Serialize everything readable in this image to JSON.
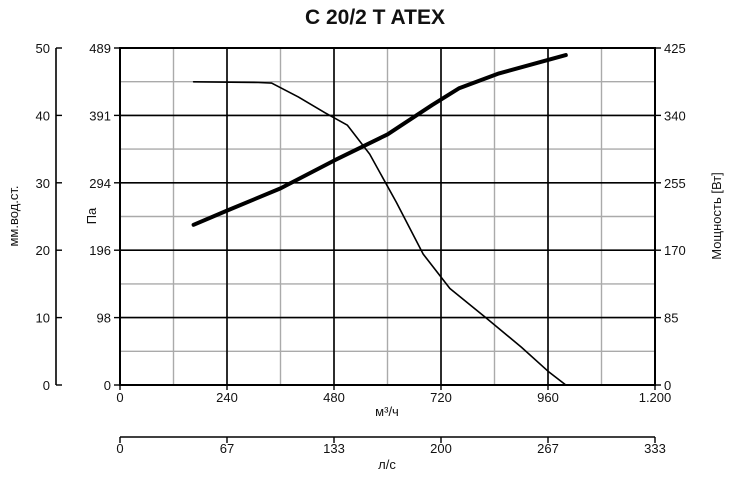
{
  "chart_data": {
    "type": "line",
    "title": "C 20/2 T ATEX",
    "x_axis": {
      "label": "м³/ч",
      "range": [
        0,
        1200
      ],
      "ticks": [
        "0",
        "240",
        "480",
        "720",
        "960",
        "1.200"
      ]
    },
    "x_axis_secondary": {
      "label": "л/с",
      "range": [
        0,
        333
      ],
      "ticks": [
        "0",
        "67",
        "133",
        "200",
        "267",
        "333"
      ]
    },
    "y_axis_left_outer": {
      "label": "мм.вод.ст.",
      "range": [
        0,
        50
      ],
      "ticks": [
        "0",
        "10",
        "20",
        "30",
        "40",
        "50"
      ]
    },
    "y_axis_left_inner": {
      "label": "Па",
      "range": [
        0,
        489
      ],
      "ticks": [
        "0",
        "98",
        "196",
        "294",
        "391",
        "489"
      ]
    },
    "y_axis_right": {
      "label": "Мощность [Вт]",
      "range": [
        0,
        425
      ],
      "ticks": [
        "0",
        "85",
        "170",
        "255",
        "340",
        "425"
      ]
    },
    "grid": true,
    "series": [
      {
        "axis": "pressure_pa",
        "style": "thin",
        "points": [
          [
            165,
            440
          ],
          [
            310,
            439
          ],
          [
            340,
            438
          ],
          [
            400,
            418
          ],
          [
            460,
            395
          ],
          [
            510,
            377
          ],
          [
            560,
            335
          ],
          [
            620,
            265
          ],
          [
            680,
            190
          ],
          [
            740,
            140
          ],
          [
            820,
            98
          ],
          [
            900,
            55
          ],
          [
            960,
            20
          ],
          [
            1000,
            0
          ]
        ]
      },
      {
        "axis": "power_w",
        "style": "thick",
        "points": [
          [
            165,
            202
          ],
          [
            240,
            220
          ],
          [
            360,
            248
          ],
          [
            480,
            283
          ],
          [
            600,
            316
          ],
          [
            700,
            353
          ],
          [
            760,
            374
          ],
          [
            850,
            393
          ],
          [
            960,
            410
          ],
          [
            1000,
            416
          ]
        ]
      }
    ]
  }
}
